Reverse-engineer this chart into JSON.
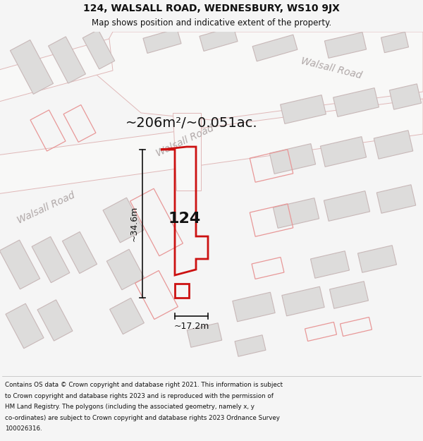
{
  "title_line1": "124, WALSALL ROAD, WEDNESBURY, WS10 9JX",
  "title_line2": "Map shows position and indicative extent of the property.",
  "footer_lines": [
    "Contains OS data © Crown copyright and database right 2021. This information is subject",
    "to Crown copyright and database rights 2023 and is reproduced with the permission of",
    "HM Land Registry. The polygons (including the associated geometry, namely x, y",
    "co-ordinates) are subject to Crown copyright and database rights 2023 Ordnance Survey",
    "100026316."
  ],
  "area_label": "~206m²/~0.051ac.",
  "property_number": "124",
  "dim_height": "~34.6m",
  "dim_width": "~17.2m",
  "road_label_upper_right": "Walsall Road",
  "road_label_mid": "Walsall Road",
  "road_label_left": "Walsall Road",
  "bg_color": "#f5f5f5",
  "map_bg": "#ededeb",
  "road_fill": "#f8f8f7",
  "building_fill": "#dddcdb",
  "building_edge": "#c8b8b8",
  "road_edge": "#e0b8b8",
  "outline_edge": "#e89898",
  "property_color": "#cc1111",
  "dim_color": "#111111",
  "title_color": "#111111",
  "road_text_color": "#b0a8a8",
  "footer_color": "#111111",
  "title_fontsize": 10,
  "subtitle_fontsize": 8.5,
  "footer_fontsize": 6.3,
  "area_fontsize": 14,
  "number_fontsize": 16,
  "dim_fontsize": 9,
  "road_fontsize": 10
}
